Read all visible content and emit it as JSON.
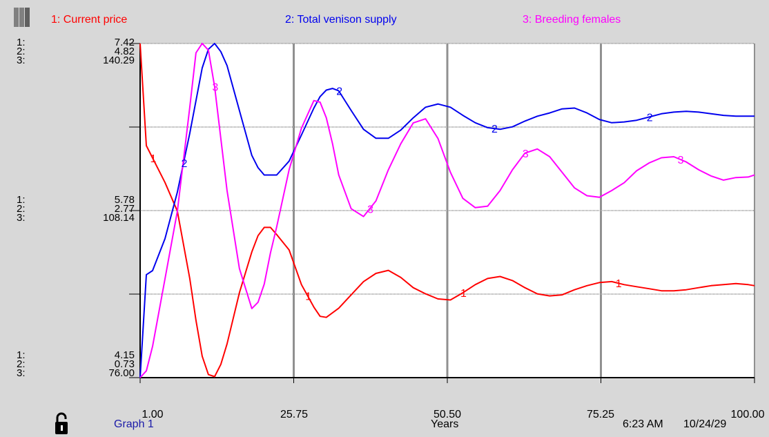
{
  "window": {
    "graph_name": "Graph 1",
    "time": "6:23 AM",
    "date": "10/24/29"
  },
  "legend": [
    {
      "label": "1: Current price",
      "color": "#ff0000"
    },
    {
      "label": "2: Total venison supply",
      "color": "#0000ee"
    },
    {
      "label": "3: Breeding females",
      "color": "#ff00ff"
    }
  ],
  "y_scale_labels": {
    "top": {
      "idx": [
        "1:",
        "2:",
        "3:"
      ],
      "vals": [
        "7.42",
        "4.82",
        "140.29"
      ]
    },
    "mid": {
      "idx": [
        "1:",
        "2:",
        "3:"
      ],
      "vals": [
        "5.78",
        "2.77",
        "108.14"
      ]
    },
    "bottom": {
      "idx": [
        "1:",
        "2:",
        "3:"
      ],
      "vals": [
        "4.15",
        "0.73",
        "76.00"
      ]
    }
  },
  "chart_data": {
    "type": "line",
    "xlabel": "Years",
    "xlim": [
      1,
      100
    ],
    "x_ticks": [
      "1.00",
      "25.75",
      "50.50",
      "75.25",
      "100.00"
    ],
    "grid": true,
    "series": [
      {
        "name": "1: Current price",
        "marker": "1",
        "color": "#ff0000",
        "ylim": [
          4.15,
          7.42
        ],
        "x": [
          1,
          2,
          5,
          7,
          9,
          10,
          11,
          12,
          13,
          14,
          15,
          17,
          19,
          20,
          21,
          22,
          23,
          25,
          27,
          29,
          30,
          31,
          33,
          35,
          37,
          39,
          41,
          43,
          45,
          47,
          49,
          51,
          53,
          55,
          57,
          59,
          61,
          63,
          65,
          67,
          69,
          71,
          73,
          75,
          77,
          79,
          81,
          83,
          85,
          87,
          89,
          91,
          93,
          95,
          97,
          99,
          100
        ],
        "y": [
          7.42,
          6.42,
          6.06,
          5.78,
          5.12,
          4.71,
          4.36,
          4.18,
          4.16,
          4.28,
          4.48,
          4.98,
          5.38,
          5.54,
          5.62,
          5.62,
          5.55,
          5.4,
          5.06,
          4.84,
          4.75,
          4.74,
          4.83,
          4.96,
          5.09,
          5.17,
          5.2,
          5.13,
          5.03,
          4.97,
          4.92,
          4.91,
          4.98,
          5.06,
          5.12,
          5.14,
          5.1,
          5.03,
          4.97,
          4.95,
          4.96,
          5.01,
          5.05,
          5.08,
          5.09,
          5.06,
          5.04,
          5.02,
          5.0,
          5.0,
          5.01,
          5.03,
          5.05,
          5.06,
          5.07,
          5.06,
          5.05
        ]
      },
      {
        "name": "2: Total venison supply",
        "marker": "2",
        "color": "#0000ee",
        "ylim": [
          0.73,
          4.82
        ],
        "x": [
          1,
          2,
          3,
          5,
          7,
          9,
          11,
          12,
          13,
          14,
          15,
          17,
          19,
          20,
          21,
          23,
          25,
          27,
          29,
          30,
          31,
          32,
          33,
          35,
          37,
          39,
          41,
          43,
          45,
          47,
          49,
          51,
          53,
          55,
          57,
          59,
          61,
          63,
          65,
          67,
          69,
          71,
          73,
          75,
          77,
          79,
          81,
          83,
          85,
          87,
          89,
          91,
          93,
          95,
          97,
          99,
          100
        ],
        "y": [
          0.73,
          1.99,
          2.04,
          2.43,
          3.0,
          3.72,
          4.52,
          4.75,
          4.82,
          4.72,
          4.55,
          4.0,
          3.45,
          3.3,
          3.21,
          3.21,
          3.38,
          3.7,
          4.03,
          4.17,
          4.25,
          4.27,
          4.24,
          4.0,
          3.77,
          3.66,
          3.66,
          3.76,
          3.91,
          4.04,
          4.08,
          4.04,
          3.94,
          3.85,
          3.79,
          3.77,
          3.8,
          3.87,
          3.93,
          3.97,
          4.02,
          4.03,
          3.97,
          3.89,
          3.85,
          3.86,
          3.88,
          3.92,
          3.96,
          3.98,
          3.99,
          3.98,
          3.96,
          3.94,
          3.93,
          3.93,
          3.93
        ]
      },
      {
        "name": "3: Breeding females",
        "marker": "3",
        "color": "#ff00ff",
        "ylim": [
          76.0,
          140.29
        ],
        "x": [
          1,
          2,
          3,
          5,
          7,
          9,
          10,
          11,
          12,
          13,
          15,
          17,
          19,
          20,
          21,
          22,
          23,
          25,
          27,
          29,
          30,
          31,
          32,
          33,
          35,
          37,
          39,
          41,
          43,
          45,
          47,
          49,
          51,
          53,
          55,
          57,
          59,
          61,
          63,
          65,
          67,
          69,
          71,
          73,
          75,
          77,
          79,
          81,
          83,
          85,
          87,
          89,
          91,
          93,
          95,
          97,
          99,
          100
        ],
        "y": [
          76.0,
          77.3,
          82.0,
          95.0,
          108.0,
          128.0,
          138.5,
          140.3,
          139.0,
          132.0,
          112.0,
          97.0,
          89.3,
          90.5,
          94.0,
          100.0,
          105.0,
          116.0,
          124.0,
          129.3,
          129.0,
          126.0,
          121.0,
          115.0,
          108.5,
          107.0,
          110.0,
          116.0,
          121.0,
          125.0,
          125.8,
          122.0,
          115.5,
          110.5,
          108.7,
          109.0,
          112.0,
          116.0,
          119.2,
          120.0,
          118.5,
          115.5,
          112.5,
          111.0,
          110.7,
          112.0,
          113.5,
          115.8,
          117.3,
          118.3,
          118.5,
          117.5,
          116.0,
          114.8,
          114.0,
          114.5,
          114.6,
          115.0
        ]
      }
    ],
    "series_label_positions": [
      {
        "series": 0,
        "x": [
          3,
          28,
          53,
          78
        ]
      },
      {
        "series": 1,
        "x": [
          8,
          33,
          58,
          83
        ]
      },
      {
        "series": 2,
        "x": [
          13,
          38,
          63,
          88
        ]
      }
    ]
  }
}
